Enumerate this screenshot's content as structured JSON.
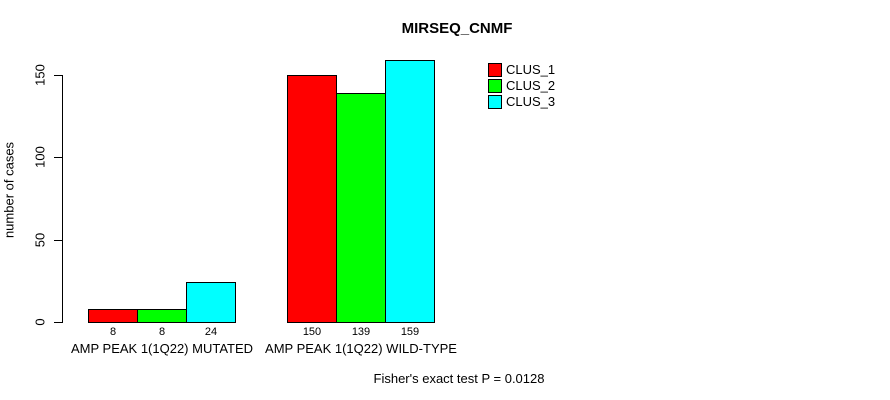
{
  "title": "MIRSEQ_CNMF",
  "y_axis": {
    "label": "number of cases",
    "ticks": [
      0,
      50,
      100,
      150
    ]
  },
  "footer": "Fisher's exact test P = 0.0128",
  "legend": {
    "position": "top-right",
    "entries": [
      {
        "label": "CLUS_1",
        "color": "#ff0000"
      },
      {
        "label": "CLUS_2",
        "color": "#00ff00"
      },
      {
        "label": "CLUS_3",
        "color": "#00ffff"
      }
    ]
  },
  "chart_data": {
    "type": "bar",
    "title": "MIRSEQ_CNMF",
    "ylabel": "number of cases",
    "xlabel": "",
    "categories": [
      "AMP PEAK 1(1Q22) MUTATED",
      "AMP PEAK 1(1Q22) WILD-TYPE"
    ],
    "series": [
      {
        "name": "CLUS_1",
        "color": "#ff0000",
        "values": [
          8,
          150
        ]
      },
      {
        "name": "CLUS_2",
        "color": "#00ff00",
        "values": [
          8,
          139
        ]
      },
      {
        "name": "CLUS_3",
        "color": "#00ffff",
        "values": [
          24,
          159
        ]
      }
    ],
    "yticks": [
      0,
      50,
      100,
      150
    ],
    "ylim": [
      0,
      165
    ],
    "grid": false,
    "legend_position": "top-right",
    "bar_value_labels_shown": true,
    "annotation": "Fisher's exact test P = 0.0128"
  }
}
